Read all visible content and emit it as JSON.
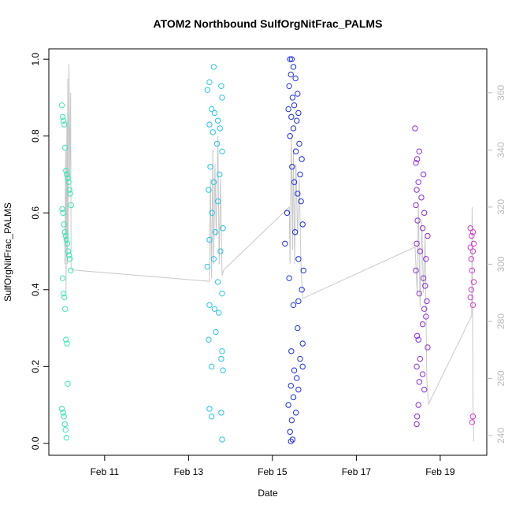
{
  "chart_data": {
    "type": "scatter",
    "title": "ATOM2 Northbound SulfOrgNitFrac_PALMS",
    "x_label": "Date",
    "y_label": "SulfOrgNitFrac_PALMS",
    "xlim": [
      9.67,
      20.11
    ],
    "xticks": [
      {
        "value": 11,
        "label": "Feb 11"
      },
      {
        "value": 13,
        "label": "Feb 13"
      },
      {
        "value": 15,
        "label": "Feb 15"
      },
      {
        "value": 17,
        "label": "Feb 17"
      },
      {
        "value": 19,
        "label": "Feb 19"
      }
    ],
    "ylim": [
      -0.031,
      1.027
    ],
    "yticks": [
      {
        "value": 0,
        "label": "0.0"
      },
      0.2,
      0.4,
      0.6,
      0.8,
      {
        "value": 1,
        "label": "1.0"
      }
    ],
    "y2lim": [
      233.1,
      375.4
    ],
    "y2ticks": [
      240,
      260,
      280,
      300,
      320,
      340,
      360
    ],
    "series": [
      {
        "type": "line",
        "axis": "y2",
        "color": "#c8c8c8",
        "x": [
          10.05,
          10.07,
          10.08,
          10.1,
          10.11,
          10.12,
          10.13,
          10.15,
          10.17,
          10.19,
          10.2,
          10.22,
          13.5,
          13.52,
          13.55,
          13.58,
          13.6,
          13.63,
          13.66,
          13.7,
          13.73,
          13.76,
          13.8,
          13.84,
          15.4,
          15.42,
          15.45,
          15.48,
          15.5,
          15.53,
          15.56,
          15.6,
          15.64,
          15.68,
          15.72,
          18.4,
          18.45,
          18.48,
          18.52,
          18.56,
          18.6,
          18.64,
          18.68,
          18.72,
          19.75,
          19.76,
          19.78,
          19.8
        ],
        "values": [
          300,
          340,
          290,
          350,
          300,
          365,
          310,
          370,
          330,
          360,
          300,
          298,
          294,
          330,
          295,
          340,
          300,
          335,
          310,
          345,
          300,
          330,
          296,
          298,
          320,
          300,
          345,
          305,
          340,
          300,
          335,
          310,
          330,
          300,
          288,
          306,
          290,
          320,
          285,
          315,
          290,
          310,
          260,
          251,
          282,
          320,
          250,
          238
        ]
      },
      {
        "color": "#33e8b8",
        "x": [
          9.98,
          10.0,
          10.02,
          10.04,
          10.06,
          10.08,
          10.1,
          10.12,
          10.14,
          10.16,
          10.18,
          10.2,
          9.99,
          10.01,
          10.03,
          10.05,
          10.07,
          10.09,
          10.11,
          10.13,
          10.15,
          10.17,
          10.19,
          10.0,
          10.02,
          10.04,
          10.06,
          10.08,
          10.1,
          10.12,
          9.98,
          10.01,
          10.03,
          10.05,
          10.07,
          10.09
        ],
        "values": [
          0.88,
          0.85,
          0.84,
          0.83,
          0.77,
          0.71,
          0.7,
          0.69,
          0.68,
          0.66,
          0.65,
          0.62,
          0.61,
          0.6,
          0.57,
          0.55,
          0.54,
          0.53,
          0.52,
          0.5,
          0.49,
          0.48,
          0.45,
          0.43,
          0.39,
          0.38,
          0.35,
          0.27,
          0.26,
          0.155,
          0.09,
          0.08,
          0.07,
          0.05,
          0.035,
          0.015
        ]
      },
      {
        "color": "#22c4e8",
        "x": [
          13.6,
          13.5,
          13.78,
          13.45,
          13.8,
          13.55,
          13.62,
          13.7,
          13.5,
          13.75,
          13.58,
          13.68,
          13.8,
          13.52,
          13.74,
          13.6,
          13.48,
          13.7,
          13.56,
          13.82,
          13.64,
          13.5,
          13.76,
          13.6,
          13.45,
          13.7,
          13.8,
          13.5,
          13.62,
          13.72,
          13.65,
          13.48,
          13.8,
          13.78,
          13.55,
          13.82,
          13.5,
          13.78,
          13.55,
          13.8
        ],
        "values": [
          0.98,
          0.94,
          0.93,
          0.92,
          0.9,
          0.87,
          0.86,
          0.84,
          0.83,
          0.82,
          0.81,
          0.78,
          0.76,
          0.72,
          0.7,
          0.68,
          0.66,
          0.63,
          0.6,
          0.56,
          0.55,
          0.53,
          0.5,
          0.48,
          0.46,
          0.42,
          0.39,
          0.36,
          0.35,
          0.34,
          0.29,
          0.27,
          0.24,
          0.22,
          0.2,
          0.19,
          0.09,
          0.08,
          0.07,
          0.01
        ]
      },
      {
        "color": "#1a2ee6",
        "x": [
          15.42,
          15.46,
          15.5,
          15.44,
          15.55,
          15.4,
          15.6,
          15.48,
          15.52,
          15.38,
          15.62,
          15.45,
          15.58,
          15.5,
          15.42,
          15.64,
          15.56,
          15.7,
          15.47,
          15.66,
          15.52,
          15.6,
          15.68,
          15.35,
          15.72,
          15.54,
          15.3,
          15.62,
          15.74,
          15.4,
          15.7,
          15.62,
          15.5,
          15.6,
          15.72,
          15.45,
          15.66,
          15.72,
          15.52,
          15.58,
          15.44,
          15.62,
          15.5,
          15.38,
          15.56,
          15.46,
          15.42,
          15.48,
          15.44
        ],
        "values": [
          1.0,
          1.0,
          0.98,
          0.96,
          0.95,
          0.93,
          0.91,
          0.9,
          0.88,
          0.87,
          0.86,
          0.85,
          0.84,
          0.82,
          0.8,
          0.78,
          0.76,
          0.74,
          0.72,
          0.7,
          0.68,
          0.65,
          0.63,
          0.6,
          0.57,
          0.55,
          0.52,
          0.48,
          0.45,
          0.43,
          0.4,
          0.37,
          0.36,
          0.3,
          0.26,
          0.24,
          0.22,
          0.2,
          0.19,
          0.17,
          0.15,
          0.14,
          0.12,
          0.1,
          0.08,
          0.06,
          0.03,
          0.01,
          0.005
        ]
      },
      {
        "color": "#8a2be2",
        "x": [
          18.4,
          18.5,
          18.45,
          18.42,
          18.6,
          18.48,
          18.44,
          18.55,
          18.42,
          18.62,
          18.46,
          18.58,
          18.7,
          18.44,
          18.52,
          18.66,
          18.42,
          18.6,
          18.64,
          18.5,
          18.68,
          18.62,
          18.66,
          18.58,
          18.45,
          18.48,
          18.7,
          18.52,
          18.44,
          18.58,
          18.5,
          18.62,
          18.48,
          18.45,
          18.44
        ],
        "values": [
          0.82,
          0.76,
          0.74,
          0.73,
          0.7,
          0.68,
          0.66,
          0.64,
          0.62,
          0.6,
          0.58,
          0.56,
          0.54,
          0.52,
          0.5,
          0.48,
          0.45,
          0.43,
          0.41,
          0.39,
          0.37,
          0.35,
          0.33,
          0.31,
          0.28,
          0.27,
          0.25,
          0.22,
          0.2,
          0.18,
          0.16,
          0.14,
          0.1,
          0.07,
          0.05
        ]
      },
      {
        "color": "#d63ad6",
        "x": [
          19.72,
          19.78,
          19.75,
          19.8,
          19.72,
          19.78,
          19.74,
          19.76,
          19.8,
          19.74,
          19.72,
          19.78,
          19.78,
          19.76
        ],
        "values": [
          0.56,
          0.55,
          0.54,
          0.52,
          0.51,
          0.5,
          0.48,
          0.45,
          0.42,
          0.4,
          0.38,
          0.36,
          0.07,
          0.055
        ]
      }
    ]
  }
}
